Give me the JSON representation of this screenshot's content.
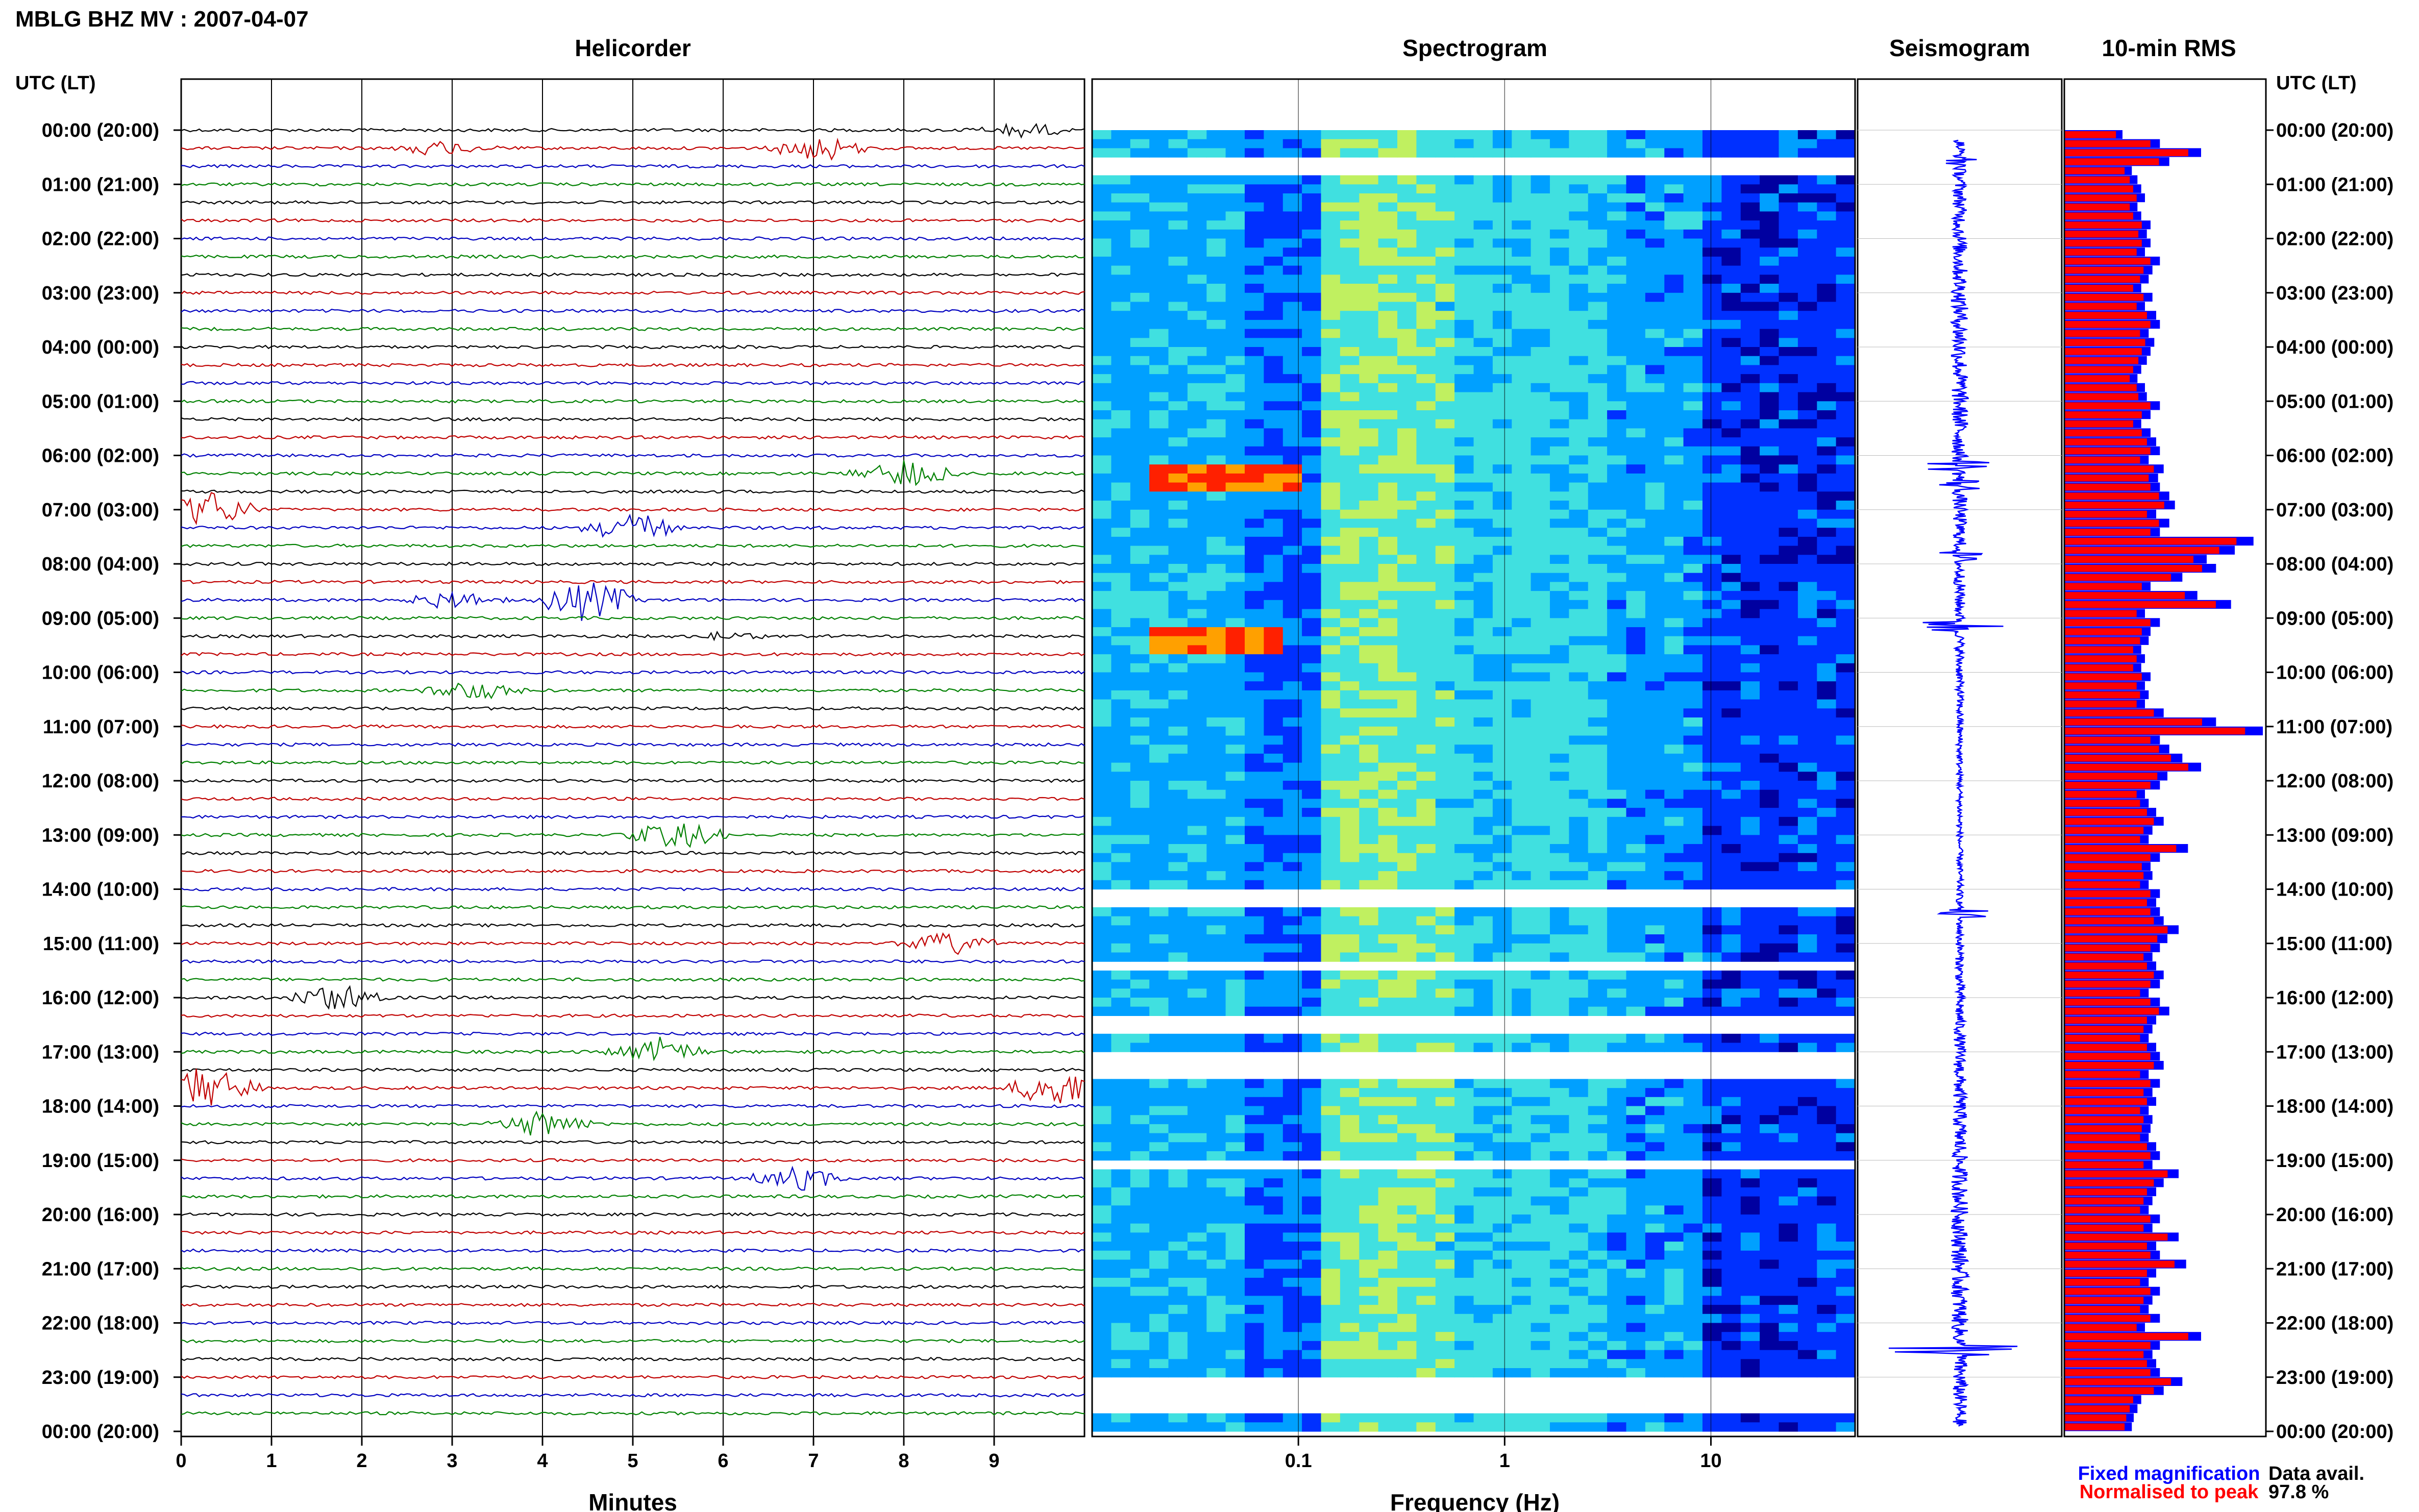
{
  "header": {
    "title": "MBLG BHZ MV : 2007-04-07",
    "utc_label": "UTC (LT)"
  },
  "chart_data": [
    {
      "type": "line",
      "title": "Helicorder",
      "xlabel": "Minutes",
      "ylabel": "UTC (LT)",
      "x_ticks": [
        "0",
        "1",
        "2",
        "3",
        "4",
        "5",
        "6",
        "7",
        "8",
        "9"
      ],
      "xlim": [
        0,
        10
      ],
      "rows": 72,
      "row_minutes": 20,
      "color_cycle": [
        "#000000",
        "#c00000",
        "#0000c0",
        "#008000"
      ],
      "events": [
        {
          "row": 1,
          "minute": 7.1,
          "color": "#008000",
          "amp": 0.9
        },
        {
          "row": 1,
          "minute": 2.9,
          "color": "#000000",
          "amp": 0.5
        },
        {
          "row": 0,
          "minute": 9.3,
          "color": "#000000",
          "amp": 0.5
        },
        {
          "row": 21,
          "minute": 0.3,
          "color": "#008000",
          "amp": 1.3
        },
        {
          "row": 19,
          "minute": 8.0,
          "color": "#000000",
          "amp": 1.0
        },
        {
          "row": 22,
          "minute": 5.0,
          "color": "#0000c0",
          "amp": 1.0
        },
        {
          "row": 26,
          "minute": 4.5,
          "color": "#0000c0",
          "amp": 1.4
        },
        {
          "row": 26,
          "minute": 3.0,
          "color": "#c00000",
          "amp": 0.6
        },
        {
          "row": 28,
          "minute": 6.0,
          "color": "#000000",
          "amp": 0.4
        },
        {
          "row": 31,
          "minute": 3.2,
          "color": "#008000",
          "amp": 0.8
        },
        {
          "row": 39,
          "minute": 5.5,
          "color": "#c00000",
          "amp": 1.0
        },
        {
          "row": 45,
          "minute": 8.5,
          "color": "#000000",
          "amp": 0.8
        },
        {
          "row": 48,
          "minute": 1.7,
          "color": "#000000",
          "amp": 1.0
        },
        {
          "row": 51,
          "minute": 5.3,
          "color": "#008000",
          "amp": 0.9
        },
        {
          "row": 53,
          "minute": 0.3,
          "color": "#008000",
          "amp": 1.5
        },
        {
          "row": 53,
          "minute": 9.7,
          "color": "#0000c0",
          "amp": 1.3
        },
        {
          "row": 55,
          "minute": 4.0,
          "color": "#c00000",
          "amp": 0.9
        },
        {
          "row": 58,
          "minute": 6.8,
          "color": "#008000",
          "amp": 0.8
        }
      ]
    },
    {
      "type": "heatmap",
      "title": "Spectrogram",
      "xlabel": "Frequency (Hz)",
      "x_scale": "log",
      "x_ticks": [
        "0.1",
        "1",
        "10"
      ],
      "xlim": [
        0.01,
        50
      ],
      "rows": 144,
      "colormap": [
        "#0000a0",
        "#0030ff",
        "#00a0ff",
        "#40e0e0",
        "#c0f060",
        "#ffff00",
        "#ffa000",
        "#ff2000"
      ],
      "gap_rows": [
        3,
        4,
        84,
        85,
        92,
        98,
        99,
        102,
        103,
        104,
        114,
        138,
        139,
        140,
        141
      ],
      "hot_spots": [
        {
          "row_start": 37,
          "row_end": 39,
          "fmin": 0.02,
          "fmax": 0.1,
          "level": 6
        },
        {
          "row_start": 55,
          "row_end": 57,
          "fmin": 0.02,
          "fmax": 0.08,
          "level": 6
        }
      ]
    },
    {
      "type": "line",
      "title": "Seismogram",
      "rows": 144,
      "color": "#0000ff",
      "spikes": [
        {
          "row": 2,
          "amp": 0.2
        },
        {
          "row": 36,
          "amp": 0.35
        },
        {
          "row": 38,
          "amp": 0.25
        },
        {
          "row": 46,
          "amp": 0.25
        },
        {
          "row": 54,
          "amp": 0.55
        },
        {
          "row": 86,
          "amp": 0.3
        },
        {
          "row": 135,
          "amp": 0.8
        }
      ]
    },
    {
      "type": "bar",
      "title": "10-min RMS",
      "ylabel": "UTC (LT)",
      "orientation": "horizontal",
      "series": [
        {
          "name": "Fixed magnification",
          "color": "#0000ff"
        },
        {
          "name": "Normalised to peak",
          "color": "#ff0000"
        }
      ],
      "values": [
        0.3,
        0.5,
        0.72,
        0.55,
        0.35,
        0.38,
        0.4,
        0.42,
        0.38,
        0.4,
        0.45,
        0.43,
        0.45,
        0.42,
        0.5,
        0.46,
        0.44,
        0.4,
        0.46,
        0.42,
        0.48,
        0.5,
        0.44,
        0.47,
        0.45,
        0.43,
        0.4,
        0.38,
        0.42,
        0.43,
        0.5,
        0.45,
        0.4,
        0.45,
        0.48,
        0.5,
        0.44,
        0.52,
        0.49,
        0.5,
        0.55,
        0.58,
        0.48,
        0.55,
        0.5,
        1.0,
        0.9,
        0.75,
        0.8,
        0.62,
        0.45,
        0.7,
        0.88,
        0.42,
        0.5,
        0.45,
        0.44,
        0.4,
        0.42,
        0.4,
        0.45,
        0.42,
        0.44,
        0.42,
        0.52,
        0.8,
        1.05,
        0.5,
        0.55,
        0.62,
        0.72,
        0.54,
        0.5,
        0.42,
        0.44,
        0.48,
        0.52,
        0.46,
        0.44,
        0.65,
        0.5,
        0.45,
        0.46,
        0.44,
        0.5,
        0.48,
        0.5,
        0.52,
        0.6,
        0.54,
        0.5,
        0.46,
        0.48,
        0.52,
        0.5,
        0.44,
        0.5,
        0.55,
        0.48,
        0.46,
        0.44,
        0.48,
        0.5,
        0.52,
        0.44,
        0.5,
        0.46,
        0.48,
        0.44,
        0.46,
        0.45,
        0.44,
        0.48,
        0.5,
        0.46,
        0.6,
        0.52,
        0.48,
        0.46,
        0.44,
        0.5,
        0.46,
        0.6,
        0.48,
        0.5,
        0.64,
        0.48,
        0.44,
        0.5,
        0.46,
        0.44,
        0.5,
        0.42,
        0.72,
        0.5,
        0.46,
        0.48,
        0.5,
        0.62,
        0.52,
        0.4,
        0.38,
        0.36,
        0.35
      ]
    }
  ],
  "axis": {
    "time_labels": [
      "00:00 (20:00)",
      "01:00 (21:00)",
      "02:00 (22:00)",
      "03:00 (23:00)",
      "04:00 (00:00)",
      "05:00 (01:00)",
      "06:00 (02:00)",
      "07:00 (03:00)",
      "08:00 (04:00)",
      "09:00 (05:00)",
      "10:00 (06:00)",
      "11:00 (07:00)",
      "12:00 (08:00)",
      "13:00 (09:00)",
      "14:00 (10:00)",
      "15:00 (11:00)",
      "16:00 (12:00)",
      "17:00 (13:00)",
      "18:00 (14:00)",
      "19:00 (15:00)",
      "20:00 (16:00)",
      "21:00 (17:00)",
      "22:00 (18:00)",
      "23:00 (19:00)",
      "00:00 (20:00)"
    ]
  },
  "legend": {
    "fixed": "Fixed magnification",
    "normalised": "Normalised to peak",
    "avail_label": "Data avail.",
    "avail_value": "97.8 %"
  },
  "colors": {
    "fixed": "#0000ff",
    "normalised": "#ff0000"
  }
}
